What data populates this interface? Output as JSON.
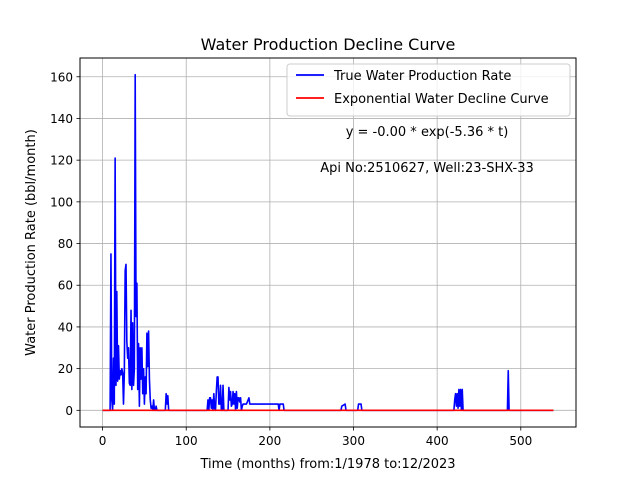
{
  "chart_data": {
    "type": "line",
    "title": "Water Production Decline Curve",
    "xlabel": "Time (months) from:1/1978 to:12/2023",
    "ylabel": "Water Production Rate (bbl/month)",
    "xlim": [
      -27,
      566
    ],
    "ylim": [
      -8,
      169
    ],
    "xticks": [
      0,
      100,
      200,
      300,
      400,
      500
    ],
    "yticks": [
      0,
      20,
      40,
      60,
      80,
      100,
      120,
      140,
      160
    ],
    "grid": true,
    "legend_position": "top-right",
    "annotations": [
      "y = -0.00 * exp(-5.36 * t)",
      "Api No:2510627, Well:23-SHX-33"
    ],
    "series": [
      {
        "name": "True Water Production Rate",
        "color": "#0000ff",
        "points": [
          [
            0,
            0
          ],
          [
            9,
            0
          ],
          [
            10,
            75
          ],
          [
            11,
            5
          ],
          [
            12,
            0
          ],
          [
            13,
            25
          ],
          [
            14,
            3
          ],
          [
            15,
            121
          ],
          [
            16,
            12
          ],
          [
            17,
            57
          ],
          [
            18,
            14
          ],
          [
            19,
            31
          ],
          [
            20,
            15
          ],
          [
            21,
            19
          ],
          [
            22,
            17
          ],
          [
            23,
            20
          ],
          [
            24,
            18
          ],
          [
            25,
            3
          ],
          [
            26,
            18
          ],
          [
            27,
            67
          ],
          [
            28,
            70
          ],
          [
            29,
            33
          ],
          [
            30,
            25
          ],
          [
            31,
            30
          ],
          [
            32,
            13
          ],
          [
            33,
            12
          ],
          [
            34,
            48
          ],
          [
            35,
            10
          ],
          [
            36,
            42
          ],
          [
            37,
            12
          ],
          [
            38,
            20
          ],
          [
            39,
            161
          ],
          [
            40,
            45
          ],
          [
            41,
            61
          ],
          [
            42,
            10
          ],
          [
            43,
            32
          ],
          [
            44,
            2
          ],
          [
            45,
            30
          ],
          [
            46,
            15
          ],
          [
            47,
            30
          ],
          [
            48,
            8
          ],
          [
            49,
            20
          ],
          [
            50,
            3
          ],
          [
            51,
            16
          ],
          [
            52,
            8
          ],
          [
            53,
            37
          ],
          [
            54,
            21
          ],
          [
            55,
            38
          ],
          [
            56,
            15
          ],
          [
            57,
            5
          ],
          [
            58,
            1
          ],
          [
            59,
            2
          ],
          [
            60,
            0
          ],
          [
            61,
            5
          ],
          [
            62,
            0
          ],
          [
            63,
            0
          ],
          [
            64,
            2
          ],
          [
            65,
            0
          ],
          [
            75,
            0
          ],
          [
            76,
            8
          ],
          [
            77,
            3
          ],
          [
            78,
            7
          ],
          [
            79,
            0
          ],
          [
            125,
            0
          ],
          [
            126,
            5
          ],
          [
            127,
            0
          ],
          [
            128,
            6
          ],
          [
            129,
            6
          ],
          [
            130,
            1
          ],
          [
            131,
            5
          ],
          [
            132,
            0
          ],
          [
            133,
            8
          ],
          [
            134,
            1
          ],
          [
            135,
            0
          ],
          [
            136,
            9
          ],
          [
            137,
            16
          ],
          [
            138,
            16
          ],
          [
            139,
            3
          ],
          [
            140,
            3
          ],
          [
            141,
            12
          ],
          [
            142,
            0
          ],
          [
            143,
            0
          ],
          [
            144,
            12
          ],
          [
            145,
            0
          ],
          [
            150,
            0
          ],
          [
            151,
            11
          ],
          [
            152,
            5
          ],
          [
            153,
            9
          ],
          [
            154,
            2
          ],
          [
            155,
            3
          ],
          [
            156,
            9
          ],
          [
            157,
            3
          ],
          [
            158,
            8
          ],
          [
            159,
            0
          ],
          [
            160,
            9
          ],
          [
            161,
            1
          ],
          [
            162,
            6
          ],
          [
            163,
            6
          ],
          [
            164,
            4
          ],
          [
            165,
            6
          ],
          [
            166,
            0
          ],
          [
            167,
            2
          ],
          [
            168,
            3
          ],
          [
            170,
            3
          ],
          [
            172,
            3
          ],
          [
            175,
            6
          ],
          [
            176,
            3
          ],
          [
            210,
            3
          ],
          [
            211,
            0
          ],
          [
            212,
            3
          ],
          [
            216,
            3
          ],
          [
            217,
            0
          ],
          [
            285,
            0
          ],
          [
            286,
            2
          ],
          [
            290,
            3
          ],
          [
            291,
            0
          ],
          [
            305,
            0
          ],
          [
            306,
            3
          ],
          [
            309,
            3
          ],
          [
            310,
            0
          ],
          [
            420,
            0
          ],
          [
            421,
            5
          ],
          [
            422,
            8
          ],
          [
            423,
            2
          ],
          [
            424,
            8
          ],
          [
            425,
            1
          ],
          [
            426,
            10
          ],
          [
            427,
            2
          ],
          [
            428,
            10
          ],
          [
            429,
            0
          ],
          [
            430,
            10
          ],
          [
            431,
            0
          ],
          [
            484,
            0
          ],
          [
            485,
            19
          ],
          [
            486,
            0
          ],
          [
            539,
            0
          ]
        ]
      },
      {
        "name": "Exponential Water Decline Curve",
        "color": "#ff0000",
        "points": [
          [
            0,
            0
          ],
          [
            539,
            0
          ]
        ]
      }
    ]
  }
}
